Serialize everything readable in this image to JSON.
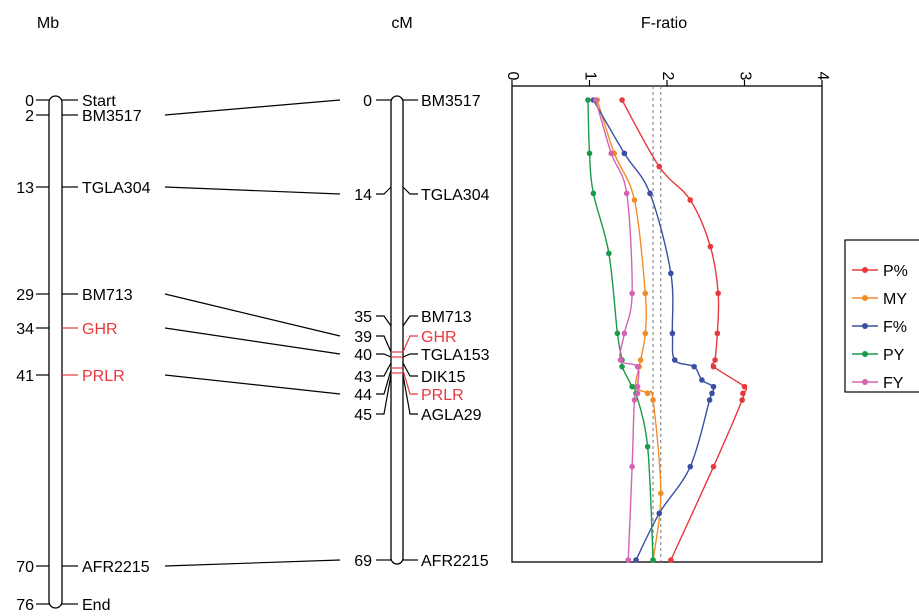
{
  "headers": {
    "mb": "Mb",
    "cm": "cM",
    "fratio": "F-ratio"
  },
  "physical_map": [
    {
      "pos": "0",
      "marker": "Start",
      "color": "#000000"
    },
    {
      "pos": "2",
      "marker": "BM3517",
      "color": "#000000"
    },
    {
      "pos": "13",
      "marker": "TGLA304",
      "color": "#000000"
    },
    {
      "pos": "29",
      "marker": "BM713",
      "color": "#000000"
    },
    {
      "pos": "34",
      "marker": "GHR",
      "color": "#e8383d"
    },
    {
      "pos": "41",
      "marker": "PRLR",
      "color": "#e8383d"
    },
    {
      "pos": "70",
      "marker": "AFR2215",
      "color": "#000000"
    },
    {
      "pos": "76",
      "marker": "End",
      "color": "#000000"
    }
  ],
  "linkage_map": [
    {
      "pos": "0",
      "marker": "BM3517",
      "color": "#000000"
    },
    {
      "pos": "14",
      "marker": "TGLA304",
      "color": "#000000"
    },
    {
      "pos": "35",
      "marker": "BM713",
      "color": "#000000"
    },
    {
      "pos": "39",
      "marker": "GHR",
      "color": "#e8383d"
    },
    {
      "pos": "40",
      "marker": "TGLA153",
      "color": "#000000"
    },
    {
      "pos": "43",
      "marker": "DIK15",
      "color": "#000000"
    },
    {
      "pos": "44",
      "marker": "PRLR",
      "color": "#e8383d"
    },
    {
      "pos": "45",
      "marker": "AGLA29",
      "color": "#000000"
    },
    {
      "pos": "69",
      "marker": "AFR2215",
      "color": "#000000"
    }
  ],
  "chart_data": {
    "type": "line",
    "orientation": "vertical-position",
    "xlabel": "F-ratio",
    "xlim": [
      0,
      4
    ],
    "xticks": [
      "0",
      "1",
      "2",
      "3",
      "4"
    ],
    "ylim": [
      0,
      69
    ],
    "threshold_lines": [
      1.82,
      1.92
    ],
    "legend_position": "right",
    "series": [
      {
        "name": "P%",
        "color": "#e8383d",
        "points": [
          [
            1.42,
            0
          ],
          [
            1.9,
            10
          ],
          [
            2.3,
            15
          ],
          [
            2.56,
            22
          ],
          [
            2.66,
            29
          ],
          [
            2.65,
            35
          ],
          [
            2.62,
            39
          ],
          [
            2.6,
            40
          ],
          [
            3.0,
            43
          ],
          [
            2.98,
            44
          ],
          [
            2.97,
            45
          ],
          [
            2.6,
            55
          ],
          [
            2.05,
            69
          ]
        ]
      },
      {
        "name": "MY",
        "color": "#f28c28",
        "points": [
          [
            1.1,
            0
          ],
          [
            1.32,
            8
          ],
          [
            1.58,
            15
          ],
          [
            1.72,
            29
          ],
          [
            1.72,
            35
          ],
          [
            1.66,
            39
          ],
          [
            1.64,
            40
          ],
          [
            1.6,
            43
          ],
          [
            1.75,
            44
          ],
          [
            1.82,
            45
          ],
          [
            1.92,
            59
          ],
          [
            1.82,
            69
          ]
        ]
      },
      {
        "name": "F%",
        "color": "#3a4fa3",
        "points": [
          [
            1.05,
            0
          ],
          [
            1.45,
            8
          ],
          [
            1.78,
            14
          ],
          [
            2.05,
            26
          ],
          [
            2.07,
            35
          ],
          [
            2.1,
            39
          ],
          [
            2.35,
            40
          ],
          [
            2.45,
            42
          ],
          [
            2.6,
            43
          ],
          [
            2.58,
            44
          ],
          [
            2.55,
            45
          ],
          [
            2.3,
            55
          ],
          [
            1.9,
            62
          ],
          [
            1.6,
            69
          ]
        ]
      },
      {
        "name": "PY",
        "color": "#1a9a4a",
        "points": [
          [
            0.98,
            0
          ],
          [
            1.0,
            8
          ],
          [
            1.05,
            14
          ],
          [
            1.25,
            23
          ],
          [
            1.36,
            35
          ],
          [
            1.42,
            39
          ],
          [
            1.42,
            40
          ],
          [
            1.55,
            43
          ],
          [
            1.6,
            44
          ],
          [
            1.75,
            52
          ],
          [
            1.82,
            69
          ]
        ]
      },
      {
        "name": "FY",
        "color": "#d563b4",
        "points": [
          [
            1.08,
            0
          ],
          [
            1.28,
            8
          ],
          [
            1.48,
            14
          ],
          [
            1.55,
            29
          ],
          [
            1.45,
            35
          ],
          [
            1.4,
            39
          ],
          [
            1.62,
            40
          ],
          [
            1.62,
            43
          ],
          [
            1.62,
            44
          ],
          [
            1.58,
            45
          ],
          [
            1.55,
            55
          ],
          [
            1.5,
            69
          ]
        ]
      }
    ]
  }
}
